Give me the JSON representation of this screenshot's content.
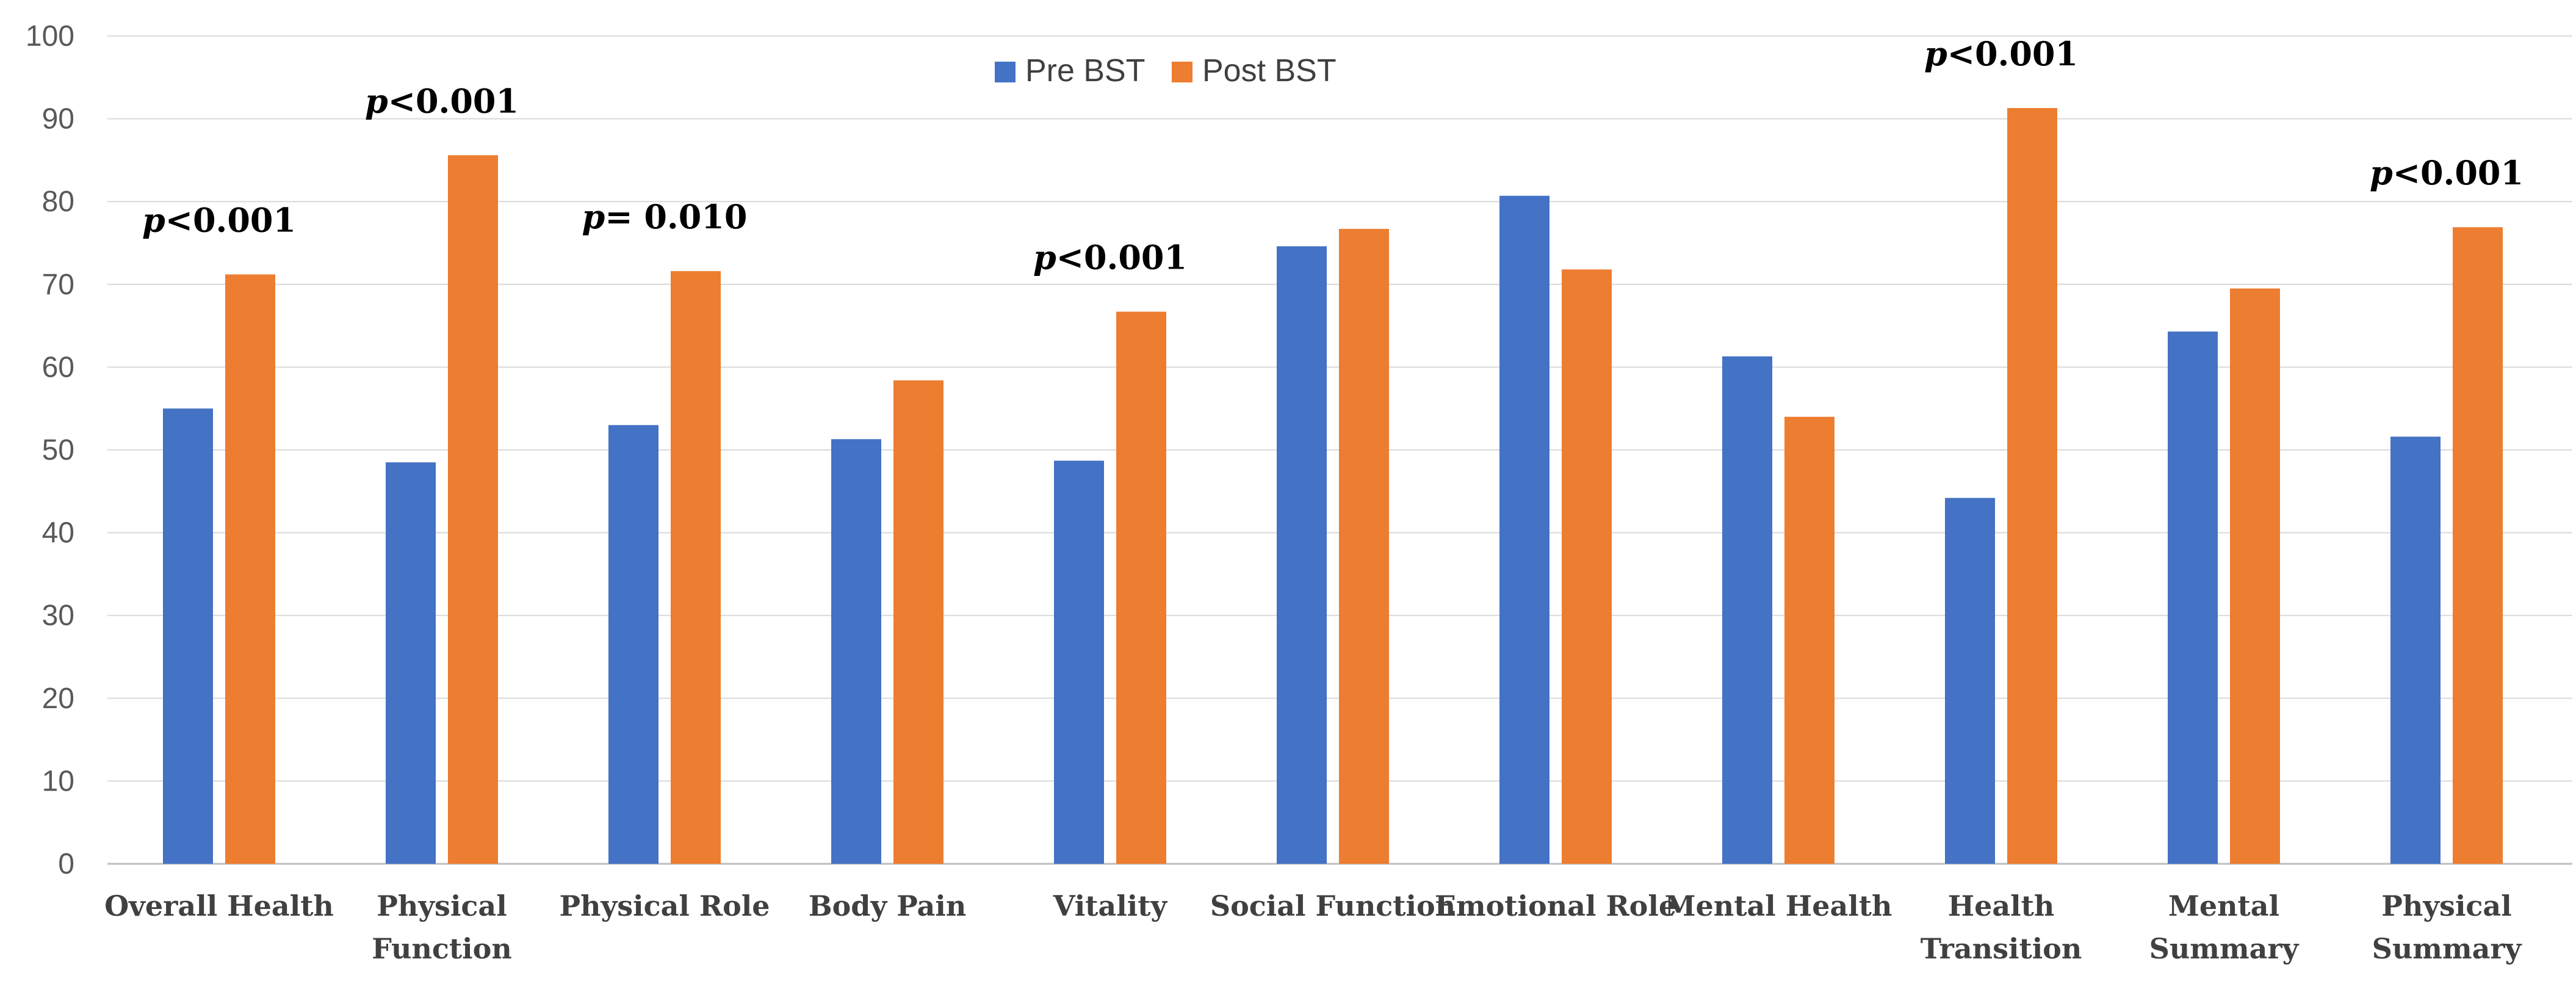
{
  "chart_data": {
    "type": "bar",
    "title": "",
    "xlabel": "",
    "ylabel": "",
    "ylim": [
      0,
      100
    ],
    "yticks": [
      0,
      10,
      20,
      30,
      40,
      50,
      60,
      70,
      80,
      90,
      100
    ],
    "grid": true,
    "legend_position": "top-center",
    "categories": [
      [
        "Overall Health"
      ],
      [
        "Physical",
        "Function"
      ],
      [
        "Physical Role"
      ],
      [
        "Body Pain"
      ],
      [
        "Vitality"
      ],
      [
        "Social Function"
      ],
      [
        "Emotional Role"
      ],
      [
        "Mental Health"
      ],
      [
        "Health",
        "Transition"
      ],
      [
        "Mental",
        "Summary"
      ],
      [
        "Physical",
        "Summary"
      ]
    ],
    "series": [
      {
        "name": "Pre BST",
        "color": "#4472C4",
        "values": [
          55,
          48.5,
          53,
          51.3,
          48.7,
          74.6,
          80.7,
          61.3,
          44.2,
          64.3,
          51.6
        ]
      },
      {
        "name": "Post BST",
        "color": "#ED7D31",
        "values": [
          71.2,
          85.6,
          71.6,
          58.4,
          66.7,
          76.7,
          71.8,
          54,
          91.3,
          69.5,
          76.9
        ]
      }
    ],
    "annotations": [
      {
        "category_index": 0,
        "p": "p",
        "rest": "<0.001"
      },
      {
        "category_index": 1,
        "p": "p",
        "rest": "<0.001"
      },
      {
        "category_index": 2,
        "p": "p",
        "rest": "= 0.010"
      },
      {
        "category_index": 4,
        "p": "p",
        "rest": "<0.001"
      },
      {
        "category_index": 8,
        "p": "p",
        "rest": "<0.001"
      },
      {
        "category_index": 10,
        "p": "p",
        "rest": "<0.001"
      }
    ],
    "colors": {
      "grid": "#D9D9D9",
      "axis": "#BFBFBF"
    }
  }
}
